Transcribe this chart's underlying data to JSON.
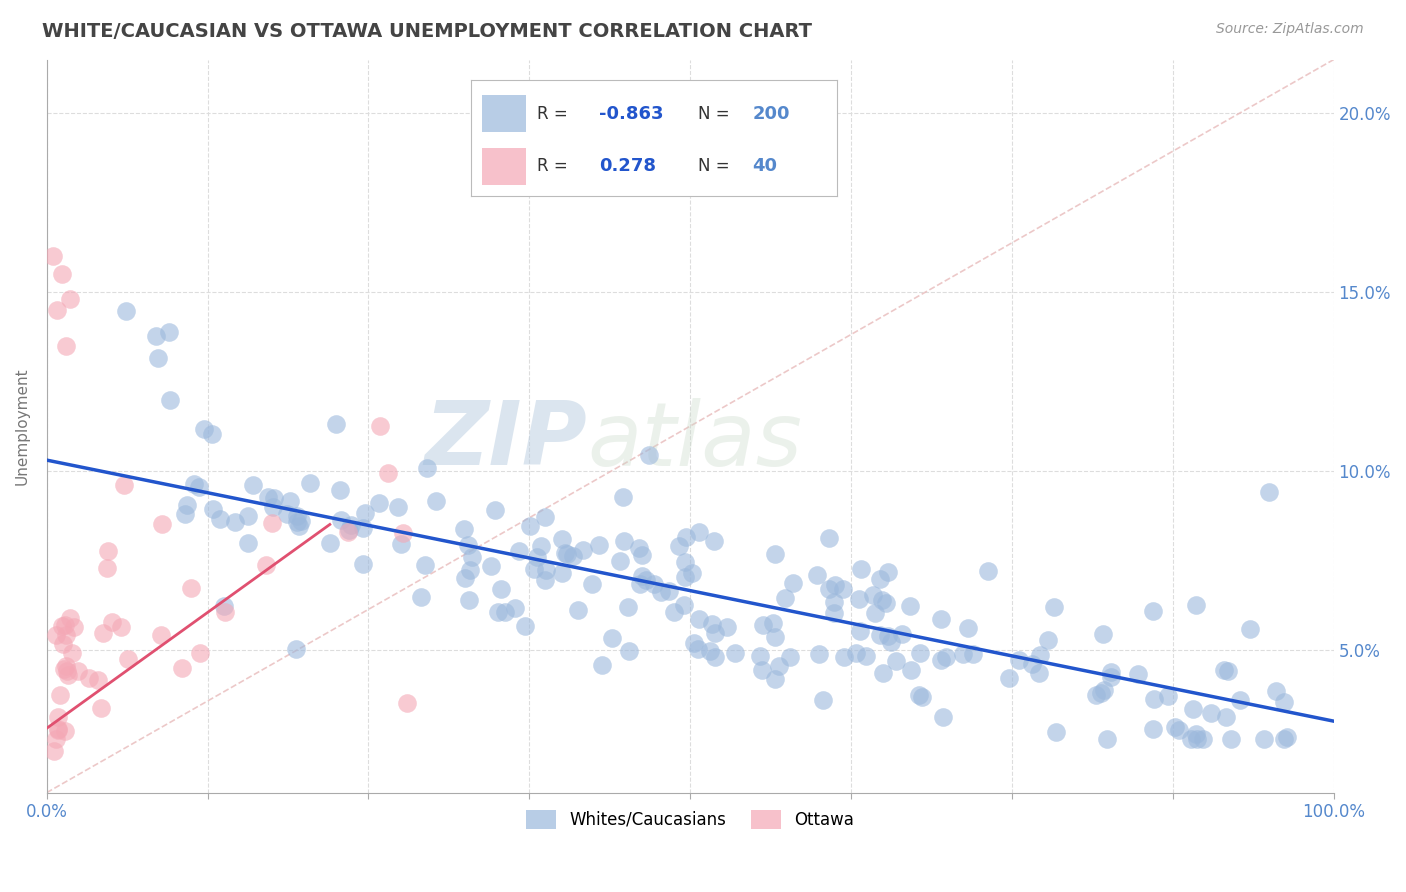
{
  "title": "WHITE/CAUCASIAN VS OTTAWA UNEMPLOYMENT CORRELATION CHART",
  "source_text": "Source: ZipAtlas.com",
  "ylabel": "Unemployment",
  "xlim": [
    0,
    1
  ],
  "ylim": [
    0.01,
    0.215
  ],
  "yticks": [
    0.05,
    0.1,
    0.15,
    0.2
  ],
  "ytick_labels": [
    "5.0%",
    "10.0%",
    "15.0%",
    "20.0%"
  ],
  "xtick_labels_left": "0.0%",
  "xtick_labels_right": "100.0%",
  "blue_color": "#9BB8DC",
  "pink_color": "#F4A7B5",
  "blue_line_color": "#2255CC",
  "pink_line_color": "#E05070",
  "axis_color": "#5588CC",
  "legend_label_blue": "Whites/Caucasians",
  "legend_label_pink": "Ottawa",
  "watermark_zip": "ZIP",
  "watermark_atlas": "atlas",
  "background_color": "#FFFFFF",
  "grid_color": "#DDDDDD",
  "title_color": "#444444",
  "blue_trend_x": [
    0.0,
    1.0
  ],
  "blue_trend_y": [
    0.103,
    0.03
  ],
  "pink_trend_x": [
    0.0,
    0.22
  ],
  "pink_trend_y": [
    0.028,
    0.085
  ],
  "diag_line_x": [
    0.0,
    1.0
  ],
  "diag_line_y": [
    0.01,
    0.215
  ]
}
